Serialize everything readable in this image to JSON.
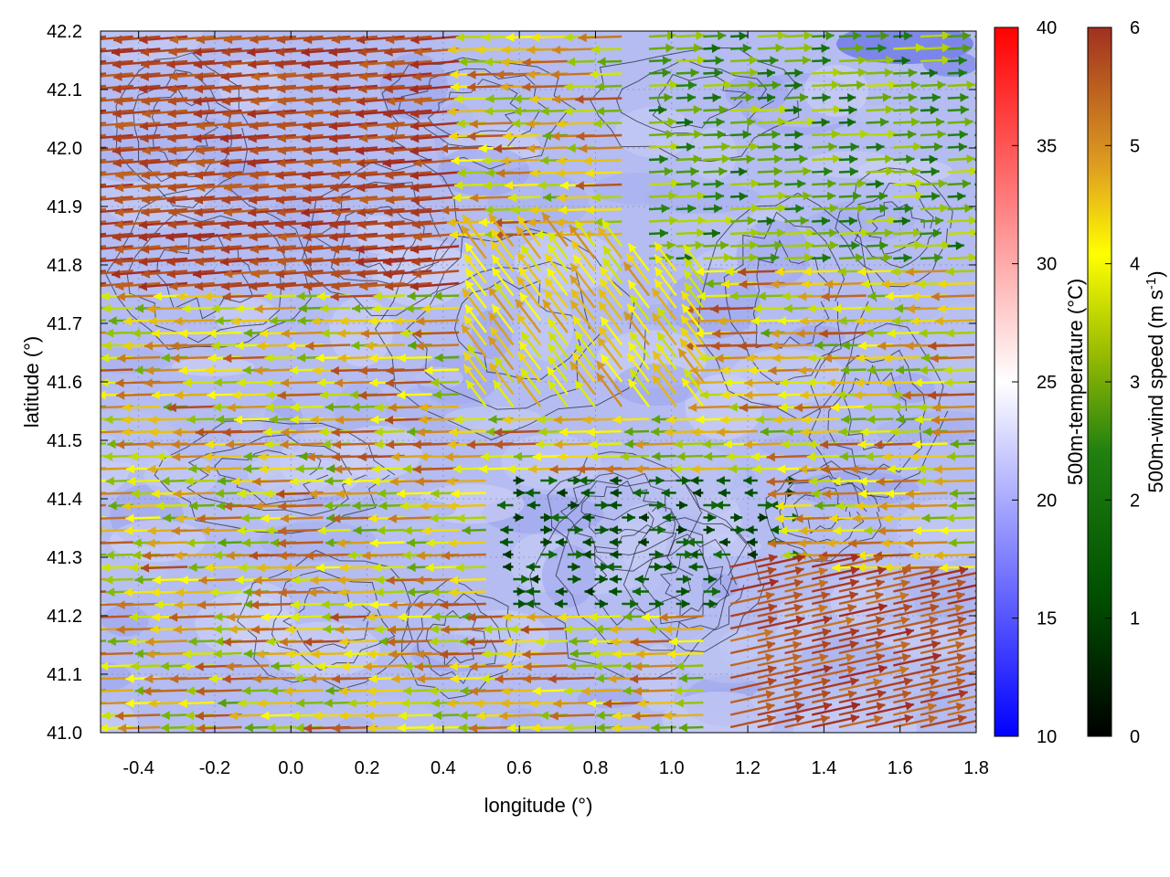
{
  "chart_data": {
    "type": "vector-field",
    "xlabel": "longitude (°)",
    "ylabel": "latitude (°)",
    "xlim": [
      -0.5,
      1.8
    ],
    "ylim": [
      41.0,
      42.2
    ],
    "x_ticks": [
      "-0.4",
      "-0.2",
      "0.0",
      "0.2",
      "0.4",
      "0.6",
      "0.8",
      "1.0",
      "1.2",
      "1.4",
      "1.6",
      "1.8"
    ],
    "y_ticks": [
      "41.0",
      "41.1",
      "41.2",
      "41.3",
      "41.4",
      "41.5",
      "41.6",
      "41.7",
      "41.8",
      "41.9",
      "42.0",
      "42.1",
      "42.2"
    ],
    "grid": "on (dotted)",
    "background_field": {
      "name": "500m-temperature",
      "unit": "°C",
      "range": [
        10,
        40
      ],
      "typical_values": "about 17–22 °C over the domain, coolest near the top-right corner (about 14 °C)",
      "colorbar_label": "500m-temperature (°C)",
      "colorbar_ticks": [
        "10",
        "15",
        "20",
        "25",
        "30",
        "35",
        "40"
      ],
      "colormap": [
        "#0000ff",
        "#ffffff",
        "#ff0000"
      ]
    },
    "vectors": {
      "name": "500m-wind speed",
      "colorbar_label": "500m-wind speed (m s-1)",
      "colorbar_ticks": [
        "0",
        "1",
        "2",
        "3",
        "4",
        "5",
        "6"
      ],
      "range": [
        0,
        6
      ],
      "colormap": [
        "#000000",
        "#006400",
        "#80b000",
        "#ffff00",
        "#d08000",
        "#a02020"
      ],
      "description": "westward flow (4–6 m s-1) over the western half, weak eastward flow (1–3 m s-1) in the north-east, strong north-eastward flow (5–6 m s-1) in the south-east corner"
    },
    "contours": "terrain elevation isolines (unlabeled), dense around longitude 0.6–1.2, latitude 41.1–41.4"
  }
}
